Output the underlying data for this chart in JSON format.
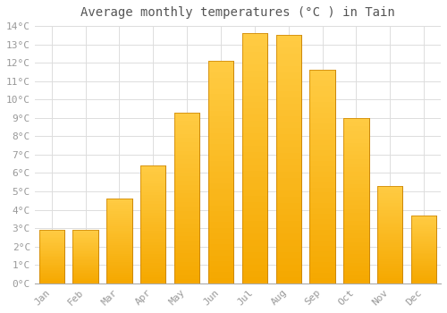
{
  "title": "Average monthly temperatures (°C ) in Tain",
  "months": [
    "Jan",
    "Feb",
    "Mar",
    "Apr",
    "May",
    "Jun",
    "Jul",
    "Aug",
    "Sep",
    "Oct",
    "Nov",
    "Dec"
  ],
  "values": [
    2.9,
    2.9,
    4.6,
    6.4,
    9.3,
    12.1,
    13.6,
    13.5,
    11.6,
    9.0,
    5.3,
    3.7
  ],
  "bar_color_light": "#FFCC44",
  "bar_color_dark": "#F5A800",
  "bar_edge_color": "#C88000",
  "ylim": [
    0,
    14
  ],
  "yticks": [
    0,
    1,
    2,
    3,
    4,
    5,
    6,
    7,
    8,
    9,
    10,
    11,
    12,
    13,
    14
  ],
  "background_color": "#FFFFFF",
  "plot_bg_color": "#FFFFFF",
  "grid_color": "#DDDDDD",
  "tick_label_color": "#999999",
  "title_color": "#555555",
  "title_fontsize": 10,
  "tick_fontsize": 8,
  "bar_width": 0.75
}
